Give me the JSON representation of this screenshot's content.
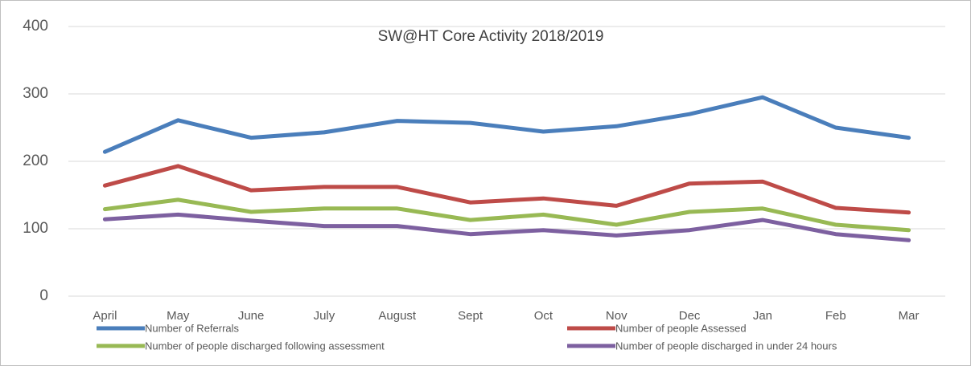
{
  "chart_data": {
    "type": "line",
    "title": "SW@HT Core Activity 2018/2019",
    "categories": [
      "April",
      "May",
      "June",
      "July",
      "August",
      "Sept",
      "Oct",
      "Nov",
      "Dec",
      "Jan",
      "Feb",
      "Mar"
    ],
    "series": [
      {
        "name": "Number of Referrals",
        "color": "#4a7ebb",
        "values": [
          214,
          261,
          235,
          243,
          260,
          257,
          244,
          252,
          270,
          295,
          250,
          235
        ]
      },
      {
        "name": "Number of people Assessed",
        "color": "#be4b48",
        "values": [
          164,
          193,
          157,
          162,
          162,
          139,
          145,
          134,
          167,
          170,
          131,
          124
        ]
      },
      {
        "name": "Number of people discharged following assessment",
        "color": "#98b954",
        "values": [
          129,
          143,
          125,
          130,
          130,
          113,
          121,
          106,
          125,
          130,
          106,
          98
        ]
      },
      {
        "name": "Number of people discharged in under 24 hours",
        "color": "#7d60a0",
        "values": [
          114,
          121,
          112,
          104,
          104,
          92,
          98,
          90,
          98,
          113,
          92,
          83
        ]
      }
    ],
    "ylim": [
      0,
      400
    ],
    "yticks": [
      0,
      100,
      200,
      300,
      400
    ],
    "grid": true,
    "legend": "bottom"
  }
}
